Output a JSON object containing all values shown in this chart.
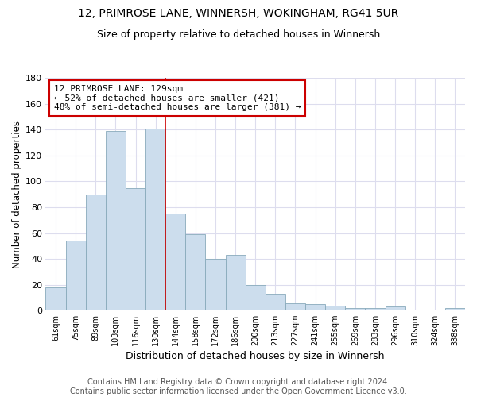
{
  "title1": "12, PRIMROSE LANE, WINNERSH, WOKINGHAM, RG41 5UR",
  "title2": "Size of property relative to detached houses in Winnersh",
  "xlabel": "Distribution of detached houses by size in Winnersh",
  "ylabel": "Number of detached properties",
  "bar_labels": [
    "61sqm",
    "75sqm",
    "89sqm",
    "103sqm",
    "116sqm",
    "130sqm",
    "144sqm",
    "158sqm",
    "172sqm",
    "186sqm",
    "200sqm",
    "213sqm",
    "227sqm",
    "241sqm",
    "255sqm",
    "269sqm",
    "283sqm",
    "296sqm",
    "310sqm",
    "324sqm",
    "338sqm"
  ],
  "bar_values": [
    18,
    54,
    90,
    139,
    95,
    141,
    75,
    59,
    40,
    43,
    20,
    13,
    6,
    5,
    4,
    2,
    2,
    3,
    1,
    0,
    2
  ],
  "bar_color": "#ccdded",
  "bar_edge_color": "#88aabb",
  "vline_x": 5.5,
  "vline_color": "#cc0000",
  "annotation_text": "12 PRIMROSE LANE: 129sqm\n← 52% of detached houses are smaller (421)\n48% of semi-detached houses are larger (381) →",
  "annotation_box_color": "white",
  "annotation_box_edge": "#cc0000",
  "ylim": [
    0,
    180
  ],
  "yticks": [
    0,
    20,
    40,
    60,
    80,
    100,
    120,
    140,
    160,
    180
  ],
  "footer_text": "Contains HM Land Registry data © Crown copyright and database right 2024.\nContains public sector information licensed under the Open Government Licence v3.0.",
  "background_color": "#ffffff",
  "plot_bg_color": "#ffffff",
  "title1_fontsize": 10,
  "title2_fontsize": 9,
  "xlabel_fontsize": 9,
  "ylabel_fontsize": 8.5,
  "footer_fontsize": 7,
  "grid_color": "#ddddee"
}
